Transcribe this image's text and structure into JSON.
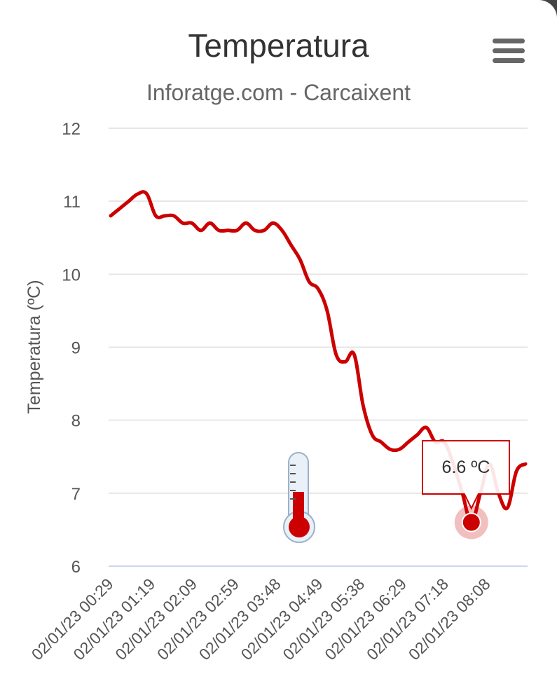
{
  "header": {
    "title": "Temperatura",
    "subtitle": "Inforatge.com - Carcaixent",
    "menu_icon": "hamburger-menu-icon"
  },
  "tooltip": {
    "text": "6.6 ºC"
  },
  "decoration": {
    "icon": "thermometer-icon",
    "accent_color": "#cc0000"
  },
  "chart_data": {
    "type": "line",
    "title": "Temperatura",
    "subtitle": "Inforatge.com - Carcaixent",
    "ylabel": "Temperatura (ºC)",
    "xlabel": "",
    "ylim": [
      6,
      12
    ],
    "yticks": [
      6,
      7,
      8,
      9,
      10,
      11,
      12
    ],
    "grid": true,
    "line_color": "#cc0000",
    "xtick_labels": [
      "02/01/23 00:29",
      "02/01/23 01:19",
      "02/01/23 02:09",
      "02/01/23 02:59",
      "02/01/23 03:48",
      "02/01/23 04:49",
      "02/01/23 05:38",
      "02/01/23 06:29",
      "02/01/23 07:18",
      "02/01/23 08:08"
    ],
    "series": [
      {
        "values": [
          10.8,
          10.9,
          11.0,
          11.1,
          11.1,
          10.8,
          10.8,
          10.8,
          10.7,
          10.7,
          10.6,
          10.7,
          10.6,
          10.6,
          10.6,
          10.7,
          10.6,
          10.6,
          10.7,
          10.6,
          10.4,
          10.2,
          9.9,
          9.8,
          9.5,
          8.9,
          8.8,
          8.9,
          8.2,
          7.8,
          7.7,
          7.6,
          7.6,
          7.7,
          7.8,
          7.9,
          7.7,
          7.7,
          7.4,
          7.0,
          6.6,
          7.0,
          7.4,
          7.0,
          6.8,
          7.3,
          7.4
        ]
      }
    ],
    "highlighted_point": {
      "index": 40,
      "value": 6.6
    }
  }
}
